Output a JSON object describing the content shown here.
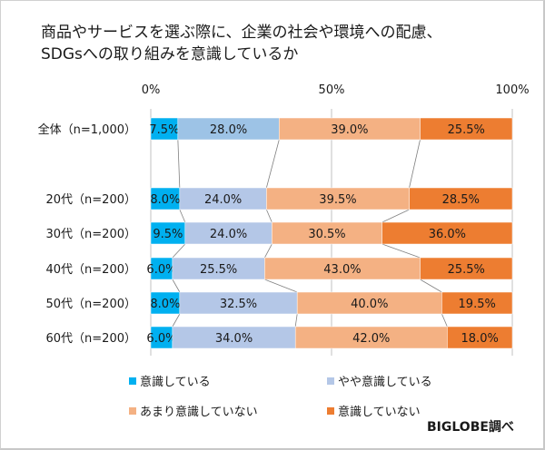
{
  "chart_data": {
    "type": "bar",
    "orientation": "horizontal",
    "stacked": "100%",
    "title": "商品やサービスを選ぶ際に、企業の社会や環境への配慮、SDGsへの取り組みを意識しているか",
    "title_lines": [
      "商品やサービスを選ぶ際に、企業の社会や環境への配慮、",
      "SDGsへの取り組みを意識しているか"
    ],
    "categories": [
      "全体（n=1,000）",
      "20代（n=200）",
      "30代（n=200）",
      "40代（n=200）",
      "50代（n=200）",
      "60代（n=200）"
    ],
    "xlim": [
      0,
      100
    ],
    "x_ticks": [
      "0%",
      "50%",
      "100%"
    ],
    "x_tick_values": [
      0,
      50,
      100
    ],
    "grid": true,
    "legend_position": "bottom",
    "series": [
      {
        "name": "意識している",
        "color": "#00B0F0",
        "values": [
          7.5,
          8.0,
          9.5,
          6.0,
          8.0,
          6.0
        ],
        "labels": [
          "7.5%",
          "8.0%",
          "9.5%",
          "6.0%",
          "8.0%",
          "6.0%"
        ]
      },
      {
        "name": "やや意識している",
        "color": "#B4C7E7",
        "overall_color": "#9DC3E6",
        "values": [
          28.0,
          24.0,
          24.0,
          25.5,
          32.5,
          34.0
        ],
        "labels": [
          "28.0%",
          "24.0%",
          "24.0%",
          "25.5%",
          "32.5%",
          "34.0%"
        ]
      },
      {
        "name": "あまり意識していない",
        "color": "#F4B183",
        "values": [
          39.0,
          39.5,
          30.5,
          43.0,
          40.0,
          42.0
        ],
        "labels": [
          "39.0%",
          "39.5%",
          "30.5%",
          "43.0%",
          "40.0%",
          "42.0%"
        ]
      },
      {
        "name": "意識していない",
        "color": "#ED7D31",
        "values": [
          25.5,
          28.5,
          36.0,
          25.5,
          19.5,
          18.0
        ],
        "labels": [
          "25.5%",
          "28.5%",
          "36.0%",
          "25.5%",
          "19.5%",
          "18.0%"
        ]
      }
    ]
  },
  "credit": "BIGLOBE調べ"
}
